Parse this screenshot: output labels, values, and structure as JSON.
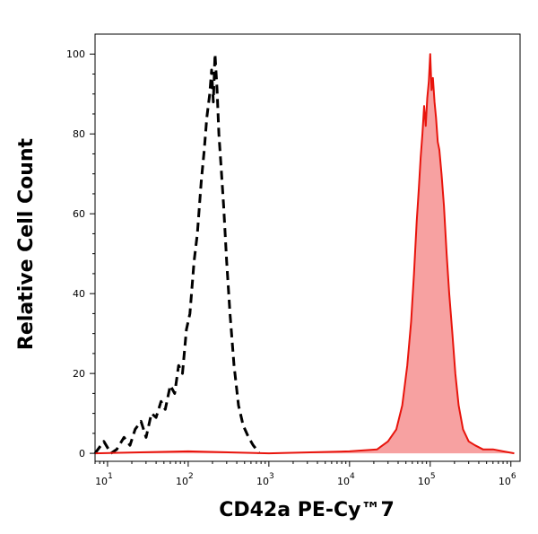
{
  "chart_data": {
    "type": "area",
    "xlabel": "CD42a PE-Cy™7",
    "ylabel": "Relative Cell Count",
    "x_scale": "log",
    "xlim": [
      7,
      1300000
    ],
    "ylim": [
      -2,
      105
    ],
    "x_ticks": [
      {
        "value": 10,
        "base": "10",
        "exp": "1"
      },
      {
        "value": 100,
        "base": "10",
        "exp": "2"
      },
      {
        "value": 1000,
        "base": "10",
        "exp": "3"
      },
      {
        "value": 10000,
        "base": "10",
        "exp": "4"
      },
      {
        "value": 100000,
        "base": "10",
        "exp": "5"
      },
      {
        "value": 1000000,
        "base": "10",
        "exp": "6"
      }
    ],
    "y_ticks": [
      "0",
      "20",
      "40",
      "60",
      "80",
      "100"
    ],
    "grid": false,
    "legend": "none",
    "series": [
      {
        "style": "dashed",
        "color": "#000000",
        "filled": false,
        "points": [
          [
            7,
            0
          ],
          [
            9,
            3
          ],
          [
            11,
            0
          ],
          [
            13,
            1
          ],
          [
            16,
            4
          ],
          [
            19,
            2
          ],
          [
            22,
            6
          ],
          [
            26,
            8
          ],
          [
            30,
            4
          ],
          [
            35,
            10
          ],
          [
            40,
            9
          ],
          [
            46,
            13
          ],
          [
            52,
            11
          ],
          [
            60,
            17
          ],
          [
            68,
            15
          ],
          [
            76,
            22
          ],
          [
            85,
            20
          ],
          [
            95,
            31
          ],
          [
            105,
            35
          ],
          [
            118,
            48
          ],
          [
            130,
            55
          ],
          [
            145,
            68
          ],
          [
            158,
            76
          ],
          [
            170,
            84
          ],
          [
            185,
            90
          ],
          [
            195,
            96
          ],
          [
            205,
            88
          ],
          [
            215,
            100
          ],
          [
            228,
            91
          ],
          [
            240,
            80
          ],
          [
            255,
            72
          ],
          [
            275,
            62
          ],
          [
            300,
            48
          ],
          [
            330,
            35
          ],
          [
            370,
            22
          ],
          [
            420,
            12
          ],
          [
            480,
            7
          ],
          [
            560,
            4
          ],
          [
            640,
            2
          ],
          [
            700,
            1
          ],
          [
            760,
            0
          ]
        ]
      },
      {
        "style": "solid",
        "color": "#e8140c",
        "fill": "#f7a1a1",
        "filled": true,
        "points": [
          [
            7,
            0
          ],
          [
            100,
            0.5
          ],
          [
            1000,
            0
          ],
          [
            10000,
            0.5
          ],
          [
            22000,
            1
          ],
          [
            30000,
            3
          ],
          [
            38000,
            6
          ],
          [
            45000,
            12
          ],
          [
            52000,
            22
          ],
          [
            58000,
            33
          ],
          [
            63000,
            45
          ],
          [
            68000,
            58
          ],
          [
            72000,
            66
          ],
          [
            76000,
            74
          ],
          [
            80000,
            80
          ],
          [
            84000,
            87
          ],
          [
            88000,
            82
          ],
          [
            92000,
            89
          ],
          [
            96000,
            93
          ],
          [
            100000,
            100
          ],
          [
            104000,
            91
          ],
          [
            108000,
            94
          ],
          [
            113000,
            88
          ],
          [
            118000,
            84
          ],
          [
            124000,
            78
          ],
          [
            130000,
            76
          ],
          [
            138000,
            70
          ],
          [
            148000,
            62
          ],
          [
            160000,
            50
          ],
          [
            172000,
            40
          ],
          [
            188000,
            30
          ],
          [
            205000,
            20
          ],
          [
            225000,
            12
          ],
          [
            255000,
            6
          ],
          [
            300000,
            3
          ],
          [
            360000,
            2
          ],
          [
            450000,
            1
          ],
          [
            600000,
            1
          ],
          [
            800000,
            0.5
          ],
          [
            1100000,
            0
          ]
        ]
      }
    ]
  }
}
